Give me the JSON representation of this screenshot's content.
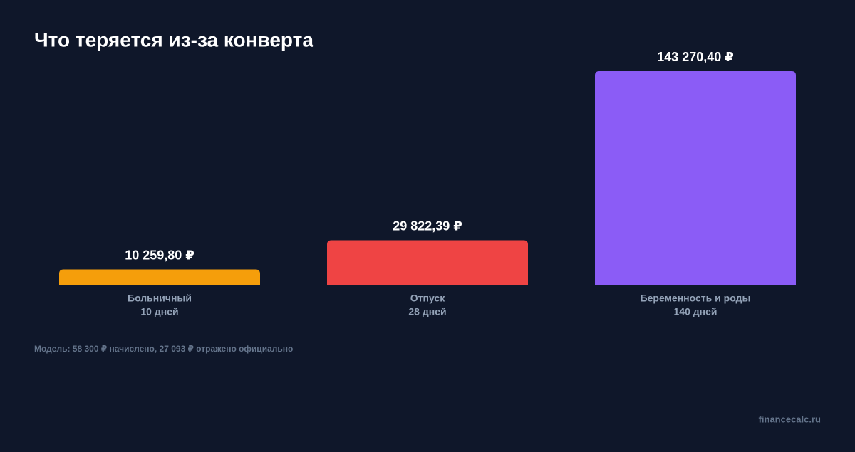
{
  "chart_data": {
    "type": "bar",
    "title": "Что теряется из-за конверта",
    "categories": [
      "Больничный",
      "Отпуск",
      "Беременность и роды"
    ],
    "category_notes": [
      "10 дней",
      "28 дней",
      "140 дней"
    ],
    "values": [
      10259.8,
      29822.39,
      143270.4
    ],
    "value_labels": [
      "10 259,80 ₽",
      "29 822,39 ₽",
      "143 270,40 ₽"
    ],
    "colors": [
      "#f59e0b",
      "#ef4444",
      "#8b5cf6"
    ],
    "ylim": [
      0,
      143270.4
    ],
    "footnote": "Модель: 58 300 ₽ начислено, 27 093 ₽ отражено официально",
    "watermark": "financecalc.ru"
  }
}
